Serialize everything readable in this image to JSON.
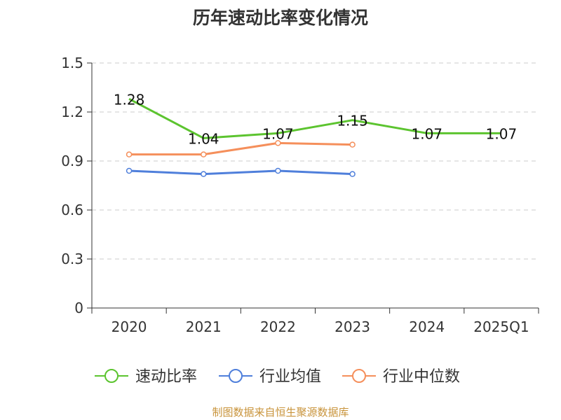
{
  "chart_data": {
    "type": "line",
    "title": "历年速动比率变化情况",
    "categories": [
      "2020",
      "2021",
      "2022",
      "2023",
      "2024",
      "2025Q1"
    ],
    "ylim": [
      0,
      1.5
    ],
    "yticks": [
      0,
      0.3,
      0.6,
      0.9,
      1.2,
      1.5
    ],
    "ytick_labels": [
      "0",
      "0.3",
      "0.6",
      "0.9",
      "1.2",
      "1.5"
    ],
    "grid": true,
    "legend_position": "bottom",
    "series": [
      {
        "name": "速动比率",
        "color": "#5cc42f",
        "values": [
          1.28,
          1.04,
          1.07,
          1.15,
          1.07,
          1.07
        ],
        "labels": [
          "1.28",
          "1.04",
          "1.07",
          "1.15",
          "1.07",
          "1.07"
        ],
        "show_markers": false
      },
      {
        "name": "行业均值",
        "color": "#4f7fdb",
        "values": [
          0.84,
          0.82,
          0.84,
          0.82,
          null,
          null
        ],
        "show_markers": true
      },
      {
        "name": "行业中位数",
        "color": "#f58f5b",
        "values": [
          0.94,
          0.94,
          1.01,
          1.0,
          null,
          null
        ],
        "show_markers": true
      }
    ]
  },
  "source_note": "制图数据来自恒生聚源数据库"
}
